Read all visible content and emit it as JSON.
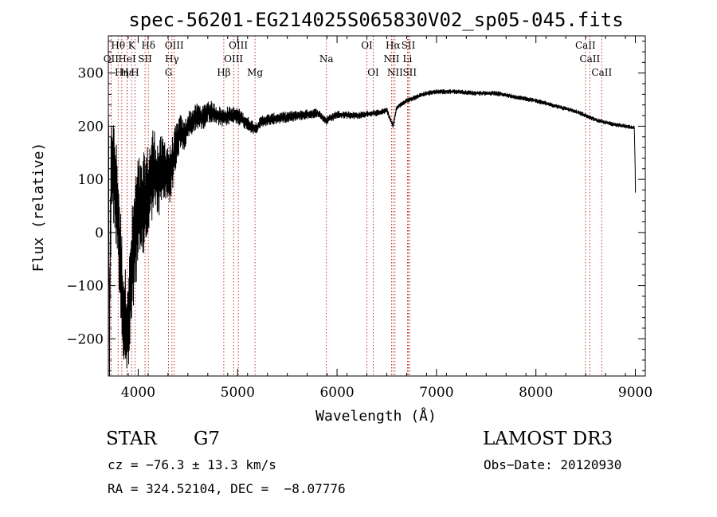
{
  "chart_data": {
    "type": "line",
    "title": "spec-56201-EG214025S065830V02_sp05-045.fits",
    "xlabel": "Wavelength (Å)",
    "ylabel": "Flux (relative)",
    "xlim": [
      3700,
      9100
    ],
    "ylim": [
      -270,
      370
    ],
    "xticks": [
      4000,
      5000,
      6000,
      7000,
      8000,
      9000
    ],
    "yticks": [
      -200,
      -100,
      0,
      100,
      200,
      300
    ],
    "xtick_labels": [
      "4000",
      "5000",
      "6000",
      "7000",
      "8000",
      "9000"
    ],
    "ytick_labels": [
      "−200",
      "−100",
      "0",
      "100",
      "200",
      "300"
    ],
    "anchors": [
      [
        3700,
        300
      ],
      [
        3710,
        -240
      ],
      [
        3730,
        150
      ],
      [
        3760,
        100
      ],
      [
        3790,
        60
      ],
      [
        3820,
        -50
      ],
      [
        3850,
        -150
      ],
      [
        3880,
        -180
      ],
      [
        3910,
        -150
      ],
      [
        3940,
        -60
      ],
      [
        3970,
        0
      ],
      [
        4000,
        40
      ],
      [
        4030,
        30
      ],
      [
        4070,
        60
      ],
      [
        4110,
        80
      ],
      [
        4150,
        120
      ],
      [
        4200,
        100
      ],
      [
        4260,
        120
      ],
      [
        4320,
        110
      ],
      [
        4380,
        160
      ],
      [
        4420,
        190
      ],
      [
        4460,
        180
      ],
      [
        4500,
        200
      ],
      [
        4550,
        210
      ],
      [
        4600,
        220
      ],
      [
        4650,
        215
      ],
      [
        4700,
        230
      ],
      [
        4750,
        225
      ],
      [
        4800,
        220
      ],
      [
        4860,
        215
      ],
      [
        4900,
        220
      ],
      [
        5000,
        220
      ],
      [
        5100,
        205
      ],
      [
        5180,
        195
      ],
      [
        5250,
        210
      ],
      [
        5400,
        215
      ],
      [
        5600,
        220
      ],
      [
        5800,
        225
      ],
      [
        5890,
        210
      ],
      [
        6000,
        222
      ],
      [
        6200,
        220
      ],
      [
        6400,
        225
      ],
      [
        6500,
        230
      ],
      [
        6563,
        200
      ],
      [
        6600,
        235
      ],
      [
        6700,
        248
      ],
      [
        6800,
        255
      ],
      [
        6900,
        262
      ],
      [
        7000,
        265
      ],
      [
        7200,
        265
      ],
      [
        7400,
        262
      ],
      [
        7600,
        262
      ],
      [
        7800,
        255
      ],
      [
        8000,
        248
      ],
      [
        8200,
        238
      ],
      [
        8400,
        228
      ],
      [
        8500,
        220
      ],
      [
        8600,
        212
      ],
      [
        8700,
        207
      ],
      [
        8800,
        203
      ],
      [
        8900,
        200
      ],
      [
        8990,
        197
      ],
      [
        9000,
        100
      ],
      [
        9003,
        25
      ]
    ],
    "noise": [
      [
        3700,
        100
      ],
      [
        4000,
        110
      ],
      [
        4300,
        60
      ],
      [
        4450,
        30
      ],
      [
        4700,
        22
      ],
      [
        5200,
        12
      ],
      [
        6200,
        7
      ],
      [
        6600,
        5
      ],
      [
        9000,
        4
      ]
    ],
    "lines_top": [
      {
        "label": "Hθ",
        "x": 3798,
        "row": 1
      },
      {
        "label": "K",
        "x": 3934,
        "row": 1
      },
      {
        "label": "Hδ",
        "x": 4102,
        "row": 1
      },
      {
        "label": "OIII",
        "x": 4363,
        "row": 1
      },
      {
        "label": "OIII",
        "x": 5007,
        "row": 1
      },
      {
        "label": "OI",
        "x": 6300,
        "row": 1
      },
      {
        "label": "Hα",
        "x": 6563,
        "row": 1
      },
      {
        "label": "SII",
        "x": 6717,
        "row": 1
      },
      {
        "label": "CaII",
        "x": 8498,
        "row": 1
      },
      {
        "label": "OII",
        "x": 3727,
        "row": 2
      },
      {
        "label": "HeI",
        "x": 3889,
        "row": 2
      },
      {
        "label": "SII",
        "x": 4069,
        "row": 2
      },
      {
        "label": "Hγ",
        "x": 4340,
        "row": 2
      },
      {
        "label": "OIII",
        "x": 4959,
        "row": 2
      },
      {
        "label": "Na",
        "x": 5893,
        "row": 2
      },
      {
        "label": "NII",
        "x": 6548,
        "row": 2
      },
      {
        "label": "Li",
        "x": 6708,
        "row": 2
      },
      {
        "label": "CaII",
        "x": 8542,
        "row": 2
      },
      {
        "label": "Hε",
        "x": 3889,
        "row": 3
      },
      {
        "label": "Hη",
        "x": 3835,
        "row": 3
      },
      {
        "label": "H",
        "x": 3968,
        "row": 3
      },
      {
        "label": "G",
        "x": 4305,
        "row": 3
      },
      {
        "label": "Hβ",
        "x": 4861,
        "row": 3
      },
      {
        "label": "Mg",
        "x": 5175,
        "row": 3
      },
      {
        "label": "OI",
        "x": 6364,
        "row": 3
      },
      {
        "label": "NII",
        "x": 6583,
        "row": 3
      },
      {
        "label": "SII",
        "x": 6731,
        "row": 3
      },
      {
        "label": "CaII",
        "x": 8662,
        "row": 3
      }
    ]
  },
  "info": {
    "class": "STAR",
    "subclass": "G7",
    "survey": "LAMOST DR3",
    "cz": "cz = −76.3 ± 13.3 km/s",
    "obs_date": "Obs−Date: 20120930",
    "radec": "RA = 324.52104, DEC =  −8.07776"
  }
}
